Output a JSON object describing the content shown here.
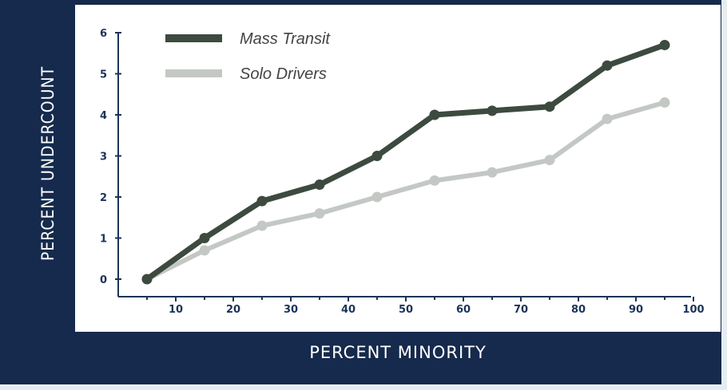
{
  "chart_data": {
    "type": "line",
    "xlabel": "PERCENT MINORITY",
    "ylabel": "PERCENT UNDERCOUNT",
    "xlim": [
      0,
      100
    ],
    "ylim": [
      0,
      6
    ],
    "x_ticks": [
      "10",
      "20",
      "30",
      "40",
      "50",
      "60",
      "70",
      "80",
      "90",
      "100"
    ],
    "y_ticks": [
      "0",
      "1",
      "2",
      "3",
      "4",
      "5",
      "6"
    ],
    "x": [
      5,
      15,
      25,
      35,
      45,
      55,
      65,
      75,
      85,
      95
    ],
    "series": [
      {
        "name": "Mass Transit",
        "color": "#3d4a3f",
        "values": [
          0,
          1.0,
          1.9,
          2.3,
          3.0,
          4.0,
          4.1,
          4.2,
          5.2,
          5.7
        ]
      },
      {
        "name": "Solo Drivers",
        "color": "#c4c8c4",
        "values": [
          0,
          0.7,
          1.3,
          1.6,
          2.0,
          2.4,
          2.6,
          2.9,
          3.9,
          4.3
        ]
      }
    ],
    "legend_position": "top-left",
    "grid": false
  },
  "colors": {
    "frame": "#152a4c",
    "axis": "#1c3358",
    "background": "#ffffff"
  }
}
